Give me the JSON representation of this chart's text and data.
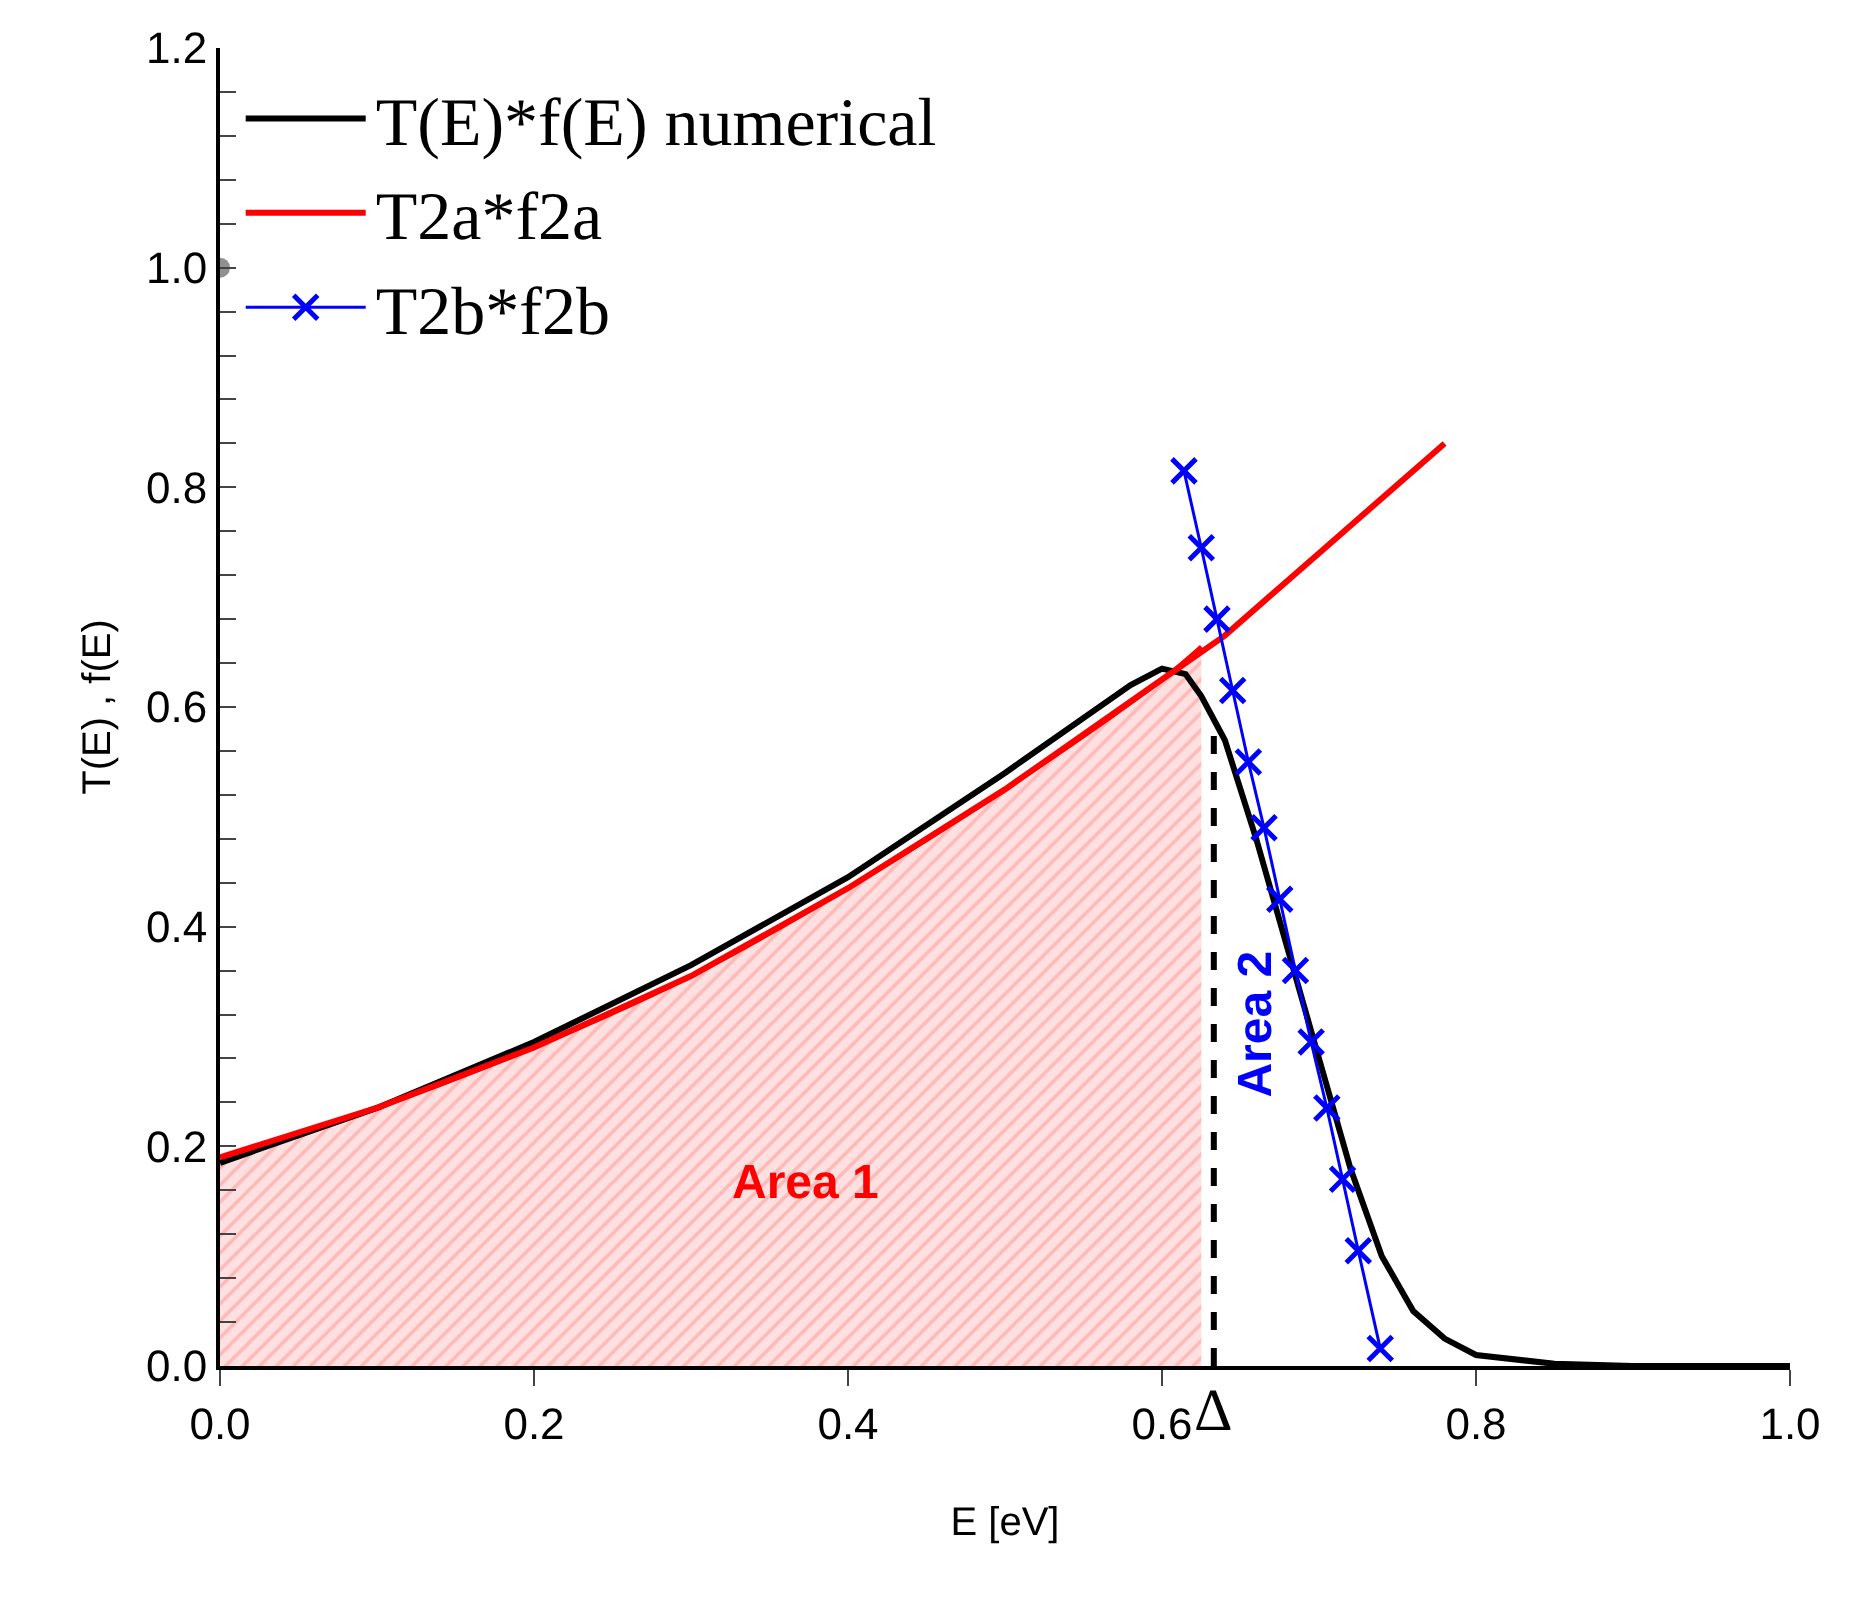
{
  "chart_data": {
    "type": "line",
    "xlabel": "E [eV]",
    "ylabel": "T(E) , f(E)",
    "xlim": [
      0,
      1.0
    ],
    "ylim": [
      0,
      1.2
    ],
    "xticks": [
      {
        "value": 0,
        "label": "0.0"
      },
      0.2,
      0.4,
      0.6,
      0.8,
      {
        "value": 1.0,
        "label": "1.0"
      }
    ],
    "yticks": [
      {
        "value": 0,
        "label": "0.0"
      },
      {
        "value": 0.04,
        "label": null
      },
      {
        "value": 0.08,
        "label": null
      },
      {
        "value": 0.12,
        "label": null
      },
      {
        "value": 0.16,
        "label": null
      },
      0.2,
      {
        "value": 0.24,
        "label": null
      },
      {
        "value": 0.28,
        "label": null
      },
      {
        "value": 0.32,
        "label": null
      },
      {
        "value": 0.36,
        "label": null
      },
      0.4,
      {
        "value": 0.44,
        "label": null
      },
      {
        "value": 0.48,
        "label": null
      },
      {
        "value": 0.52,
        "label": null
      },
      {
        "value": 0.56,
        "label": null
      },
      0.6,
      {
        "value": 0.64,
        "label": null
      },
      {
        "value": 0.68,
        "label": null
      },
      {
        "value": 0.72,
        "label": null
      },
      {
        "value": 0.76,
        "label": null
      },
      0.8,
      {
        "value": 0.84,
        "label": null
      },
      {
        "value": 0.88,
        "label": null
      },
      {
        "value": 0.92,
        "label": null
      },
      {
        "value": 0.96,
        "label": null
      },
      {
        "value": 1.0,
        "label": "1.0"
      },
      {
        "value": 1.04,
        "label": null
      },
      {
        "value": 1.08,
        "label": null
      },
      {
        "value": 1.12,
        "label": null
      },
      {
        "value": 1.16,
        "label": null
      },
      1.2
    ],
    "legend": "top left",
    "series": [
      {
        "type": "area",
        "color": "#ff0000",
        "x": [
          0,
          0.1,
          0.2,
          0.3,
          0.4,
          0.5,
          0.6,
          0.625
        ],
        "values": [
          0.19,
          0.235,
          0.29,
          0.355,
          0.435,
          0.525,
          0.625,
          0.655
        ]
      },
      {
        "name": "T(E)*f(E) numerical",
        "color": "#000000",
        "marker": "none",
        "x": [
          0,
          0.1,
          0.2,
          0.3,
          0.4,
          0.5,
          0.58,
          0.6,
          0.615,
          0.625,
          0.64,
          0.66,
          0.68,
          0.7,
          0.72,
          0.74,
          0.76,
          0.78,
          0.8,
          0.85,
          0.9,
          1.0
        ],
        "values": [
          0.185,
          0.235,
          0.295,
          0.365,
          0.445,
          0.54,
          0.62,
          0.635,
          0.63,
          0.61,
          0.57,
          0.48,
          0.38,
          0.28,
          0.18,
          0.1,
          0.05,
          0.025,
          0.01,
          0.002,
          0,
          0
        ]
      },
      {
        "name": "T2a*f2a",
        "color": "#ff0000",
        "marker": "none",
        "x": [
          0,
          0.1,
          0.2,
          0.3,
          0.4,
          0.5,
          0.6,
          0.64,
          0.7,
          0.78
        ],
        "values": [
          0.19,
          0.235,
          0.29,
          0.355,
          0.435,
          0.525,
          0.625,
          0.665,
          0.74,
          0.84
        ]
      },
      {
        "name": "T2b*f2b",
        "color": "#0000ff",
        "marker": "cross",
        "x": [
          0.614,
          0.625,
          0.635,
          0.645,
          0.655,
          0.665,
          0.675,
          0.685,
          0.695,
          0.705,
          0.715,
          0.725,
          0.739
        ],
        "values": [
          0.815,
          0.745,
          0.68,
          0.615,
          0.55,
          0.49,
          0.425,
          0.36,
          0.295,
          0.235,
          0.17,
          0.105,
          0.016
        ]
      },
      {
        "type": "scatter",
        "color": "#909090",
        "marker": "circle",
        "x": [
          0
        ],
        "values": [
          1.0
        ]
      }
    ],
    "ref_lines": [
      {
        "axis": "x",
        "value": 0.633,
        "label": "Δ",
        "color": "#000000",
        "line_style": "dashed"
      }
    ],
    "annotations": [
      "Area 1",
      "Area 2"
    ]
  }
}
